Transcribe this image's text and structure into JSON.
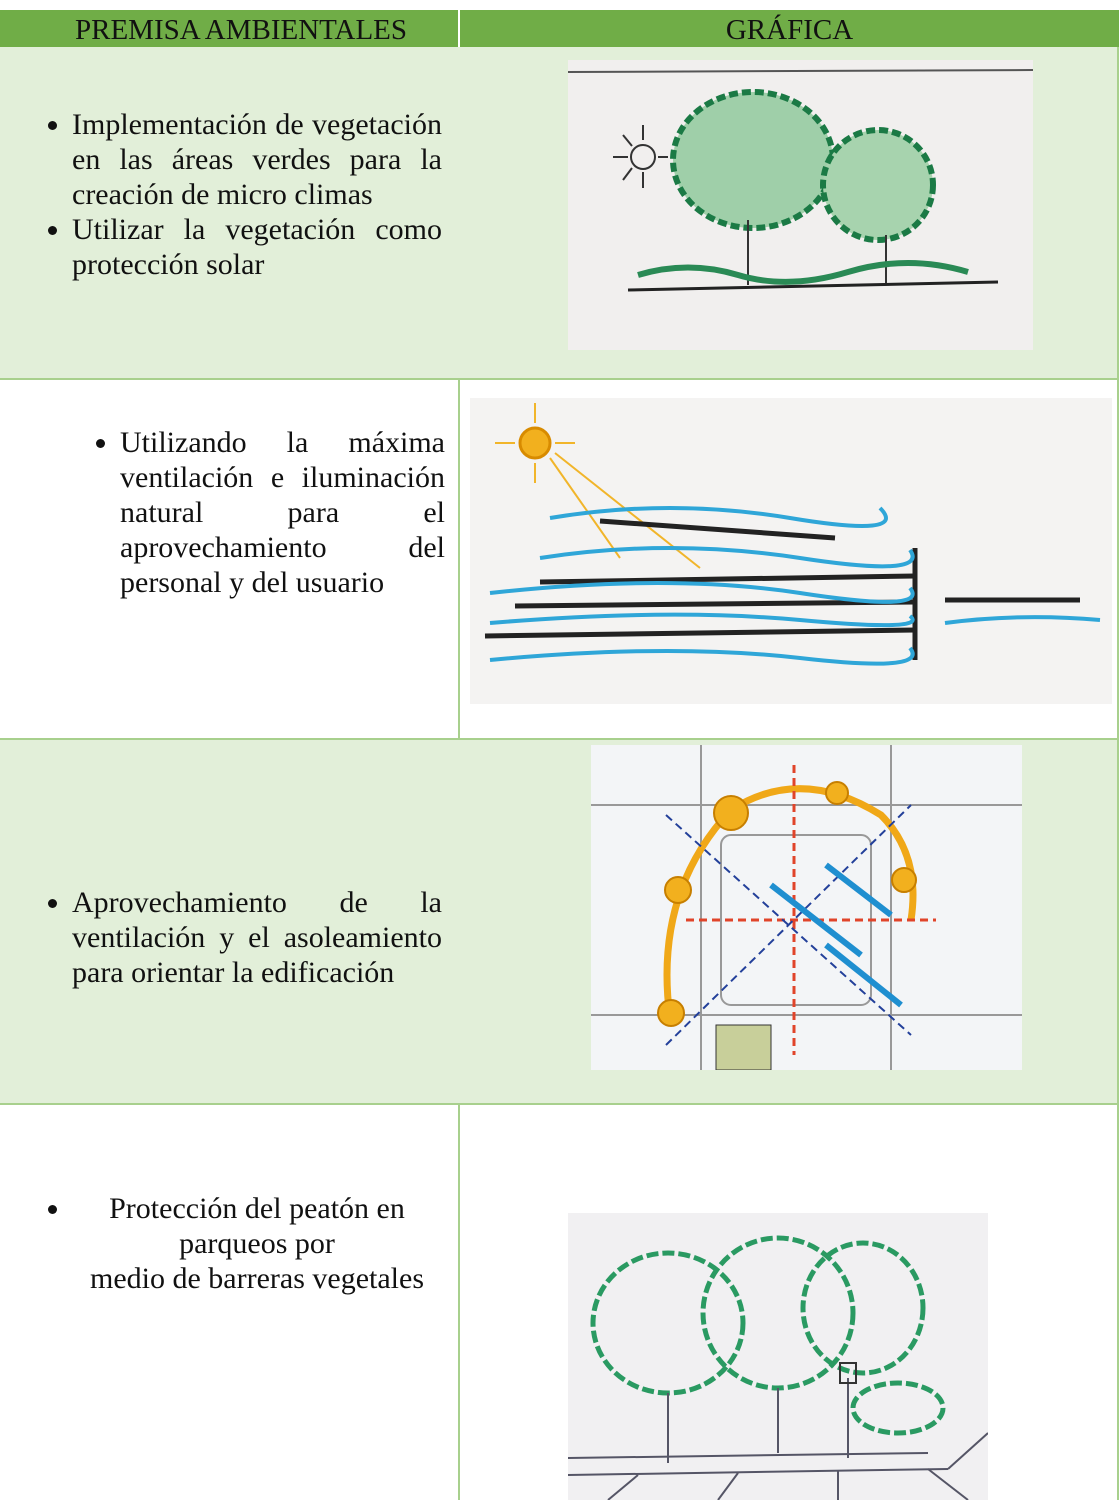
{
  "header": {
    "columns": [
      "PREMISA AMBIENTALES",
      "GRÁFICA"
    ]
  },
  "rows": [
    {
      "bullets": [
        "Implementación de vegetación en las áreas verdes para la creación de micro climas",
        "Utilizar la vegetación como protección solar"
      ]
    },
    {
      "bullets": [
        "Utilizando la máxima ventilación e iluminación natural para el aprovechamiento del personal y del usuario"
      ]
    },
    {
      "bullets": [
        "Aprovechamiento de la ventilación y el asoleamiento para orientar la edificación"
      ]
    },
    {
      "bullets": [
        "Protección del peatón en\nparqueos por\nmedio de barreras vegetales"
      ]
    }
  ]
}
